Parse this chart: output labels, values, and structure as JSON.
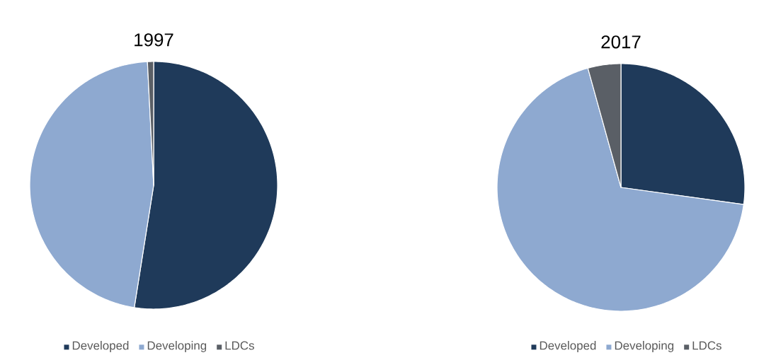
{
  "chart_data": [
    {
      "type": "pie",
      "title": "1997",
      "categories": [
        "Developed",
        "Developing",
        "LDCs"
      ],
      "values": [
        52.5,
        46.7,
        0.8
      ],
      "colors": [
        "#1f3a5a",
        "#8ea9d0",
        "#5a5f66"
      ],
      "legend": "bottom"
    },
    {
      "type": "pie",
      "title": "2017",
      "categories": [
        "Developed",
        "Developing",
        "LDCs"
      ],
      "values": [
        27.2,
        68.5,
        4.3
      ],
      "colors": [
        "#1f3a5a",
        "#8ea9d0",
        "#5a5f66"
      ],
      "legend": "bottom"
    }
  ]
}
